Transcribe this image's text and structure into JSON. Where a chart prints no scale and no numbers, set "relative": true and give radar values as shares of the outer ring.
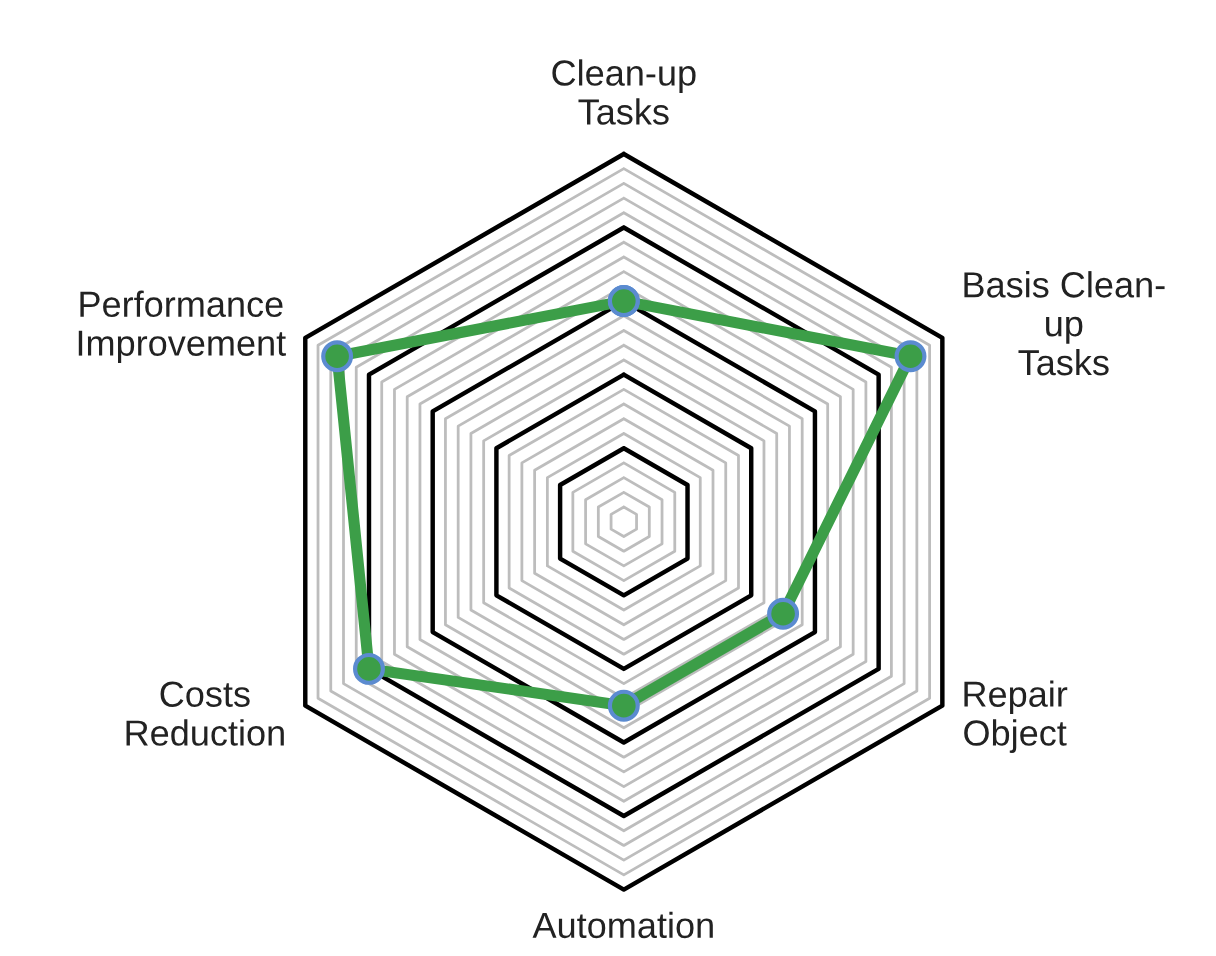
{
  "chart_data": {
    "type": "radar",
    "relative": true,
    "grid": true,
    "marker": "circle",
    "line_style": "solid",
    "categories": [
      "Clean-up\nTasks",
      "Basis Clean-\nup\nTasks",
      "Repair\nObject",
      "Automation",
      "Costs\nReduction",
      "Performance\nImprovement"
    ],
    "series": [
      {
        "color": "#3c9e48",
        "values": [
          0.6,
          0.9,
          0.5,
          0.5,
          0.8,
          0.9
        ]
      }
    ]
  }
}
